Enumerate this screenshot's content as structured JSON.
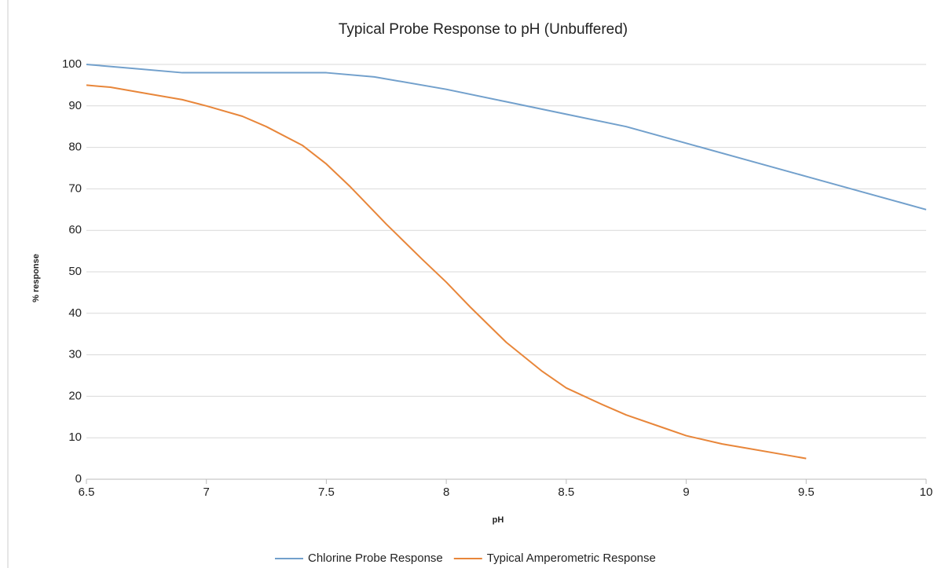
{
  "chart_data": {
    "type": "line",
    "title": "Typical Probe Response to pH (Unbuffered)",
    "x_label": "pH",
    "y_label": "% response",
    "series": [
      {
        "name": "Chlorine Probe Response",
        "color": "#72a0cc",
        "x": [
          6.5,
          6.7,
          6.9,
          7.2,
          7.5,
          7.7,
          8,
          8.25,
          8.5,
          8.75,
          9,
          9.25,
          9.5,
          9.75,
          10
        ],
        "values": [
          100,
          99,
          98,
          98,
          98,
          97,
          94,
          91,
          88,
          85,
          81,
          77,
          73,
          69,
          65
        ]
      },
      {
        "name": "Typical Amperometric Response",
        "color": "#e8863a",
        "x": [
          6.5,
          6.6,
          6.75,
          6.9,
          7,
          7.15,
          7.25,
          7.4,
          7.5,
          7.6,
          7.75,
          7.9,
          8,
          8.1,
          8.25,
          8.4,
          8.5,
          8.65,
          8.75,
          8.9,
          9,
          9.15,
          9.25,
          9.4,
          9.5
        ],
        "values": [
          95,
          94.5,
          93,
          91.5,
          90,
          87.5,
          85,
          80.5,
          76,
          70.5,
          61.5,
          53,
          47.5,
          41.5,
          33,
          26,
          22,
          18,
          15.5,
          12.5,
          10.5,
          8.5,
          7.5,
          6,
          5
        ]
      }
    ],
    "xlim": [
      6.5,
      10
    ],
    "xticks": [
      6.5,
      7,
      7.5,
      8,
      8.5,
      9,
      9.5,
      10
    ],
    "ylim": [
      0,
      100
    ],
    "yticks": [
      0,
      10,
      20,
      30,
      40,
      50,
      60,
      70,
      80,
      90,
      100
    ],
    "grid": true,
    "legend": "bottom"
  }
}
